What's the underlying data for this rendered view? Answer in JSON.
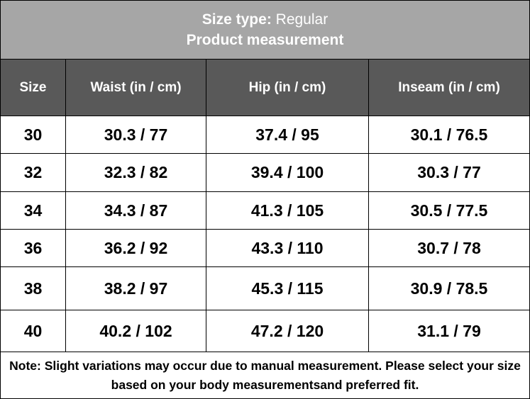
{
  "header": {
    "size_type_label": "Size type:",
    "size_type_value": "Regular",
    "subtitle": "Product measurement"
  },
  "table": {
    "columns": [
      "Size",
      "Waist (in / cm)",
      "Hip (in / cm)",
      "Inseam (in / cm)"
    ],
    "rows": [
      [
        "30",
        "30.3 / 77",
        "37.4 / 95",
        "30.1 / 76.5"
      ],
      [
        "32",
        "32.3 / 82",
        "39.4 / 100",
        "30.3 / 77"
      ],
      [
        "34",
        "34.3 / 87",
        "41.3 / 105",
        "30.5 / 77.5"
      ],
      [
        "36",
        "36.2 / 92",
        "43.3 / 110",
        "30.7 / 78"
      ],
      [
        "38",
        "38.2 / 97",
        "45.3 / 115",
        "30.9 / 78.5"
      ],
      [
        "40",
        "40.2 / 102",
        "47.2 / 120",
        "31.1 / 79"
      ]
    ]
  },
  "note": "Note: Slight variations may occur due to manual measurement. Please select your size based on your body measurementsand preferred fit."
}
